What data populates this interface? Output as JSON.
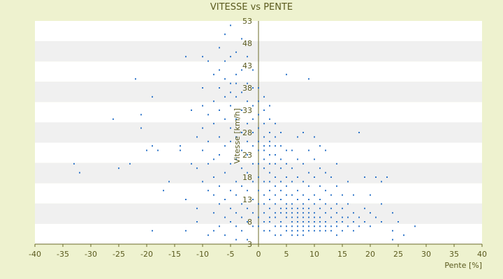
{
  "chart_data": {
    "type": "scatter",
    "title": "VITESSE vs PENTE",
    "xlabel": "Pente [%]",
    "ylabel": "Vitesse [km/h]",
    "xlim": [
      -40,
      40
    ],
    "ylim": [
      3,
      53
    ],
    "x_ticks": [
      "-40",
      "-35",
      "-30",
      "-25",
      "-20",
      "-15",
      "-10",
      "-5",
      "0",
      "5",
      "10",
      "15",
      "20",
      "25",
      "30",
      "35",
      "40"
    ],
    "y_ticks": [
      "3",
      "8",
      "13",
      "18",
      "23",
      "28",
      "33",
      "38",
      "43",
      "48",
      "53"
    ],
    "grid": "horizontal alternating bands",
    "legend": "none",
    "colors": {
      "points": "#2e75c9",
      "background": "#eef2cf",
      "band_light": "#ffffff",
      "band_gray": "#f0f0f0",
      "axis": "#6b6b2a",
      "text": "#5a5a1e"
    },
    "series": [
      {
        "points": [
          [
            -33,
            21
          ],
          [
            -32,
            19
          ],
          [
            -26,
            31
          ],
          [
            -25,
            20
          ],
          [
            -23,
            21
          ],
          [
            -21,
            32
          ],
          [
            -21,
            29
          ],
          [
            -20,
            24
          ],
          [
            -19,
            25
          ],
          [
            -19,
            36
          ],
          [
            -18,
            24
          ],
          [
            -16,
            17
          ],
          [
            -17,
            15
          ],
          [
            -14,
            24
          ],
          [
            -14,
            25
          ],
          [
            -13,
            13
          ],
          [
            -13,
            6
          ],
          [
            -13,
            45
          ],
          [
            -12,
            33
          ],
          [
            -22,
            40
          ],
          [
            -19,
            6
          ],
          [
            -11,
            11
          ],
          [
            -11,
            20
          ],
          [
            -10,
            24
          ],
          [
            -10,
            29
          ],
          [
            -10,
            34
          ],
          [
            -10,
            38
          ],
          [
            -10,
            45
          ],
          [
            -9,
            15
          ],
          [
            -9,
            21
          ],
          [
            -9,
            26
          ],
          [
            -9,
            32
          ],
          [
            -9,
            44
          ],
          [
            -8,
            14
          ],
          [
            -8,
            18
          ],
          [
            -8,
            22
          ],
          [
            -8,
            30
          ],
          [
            -8,
            35
          ],
          [
            -8,
            41
          ],
          [
            -8,
            10
          ],
          [
            -7,
            12
          ],
          [
            -7,
            16
          ],
          [
            -7,
            23
          ],
          [
            -7,
            27
          ],
          [
            -7,
            33
          ],
          [
            -7,
            38
          ],
          [
            -7,
            47
          ],
          [
            -6,
            9
          ],
          [
            -6,
            13
          ],
          [
            -6,
            19
          ],
          [
            -6,
            25
          ],
          [
            -6,
            31
          ],
          [
            -6,
            36
          ],
          [
            -6,
            44
          ],
          [
            -6,
            50
          ],
          [
            -5,
            8
          ],
          [
            -5,
            11
          ],
          [
            -5,
            15
          ],
          [
            -5,
            21
          ],
          [
            -5,
            26
          ],
          [
            -5,
            29
          ],
          [
            -5,
            34
          ],
          [
            -5,
            39
          ],
          [
            -5,
            45
          ],
          [
            -5,
            52
          ],
          [
            -4,
            7
          ],
          [
            -4,
            10
          ],
          [
            -4,
            14
          ],
          [
            -4,
            17
          ],
          [
            -4,
            22
          ],
          [
            -4,
            27
          ],
          [
            -4,
            31
          ],
          [
            -4,
            36
          ],
          [
            -4,
            41
          ],
          [
            -4,
            46
          ],
          [
            -3,
            6
          ],
          [
            -3,
            9
          ],
          [
            -3,
            12
          ],
          [
            -3,
            16
          ],
          [
            -3,
            20
          ],
          [
            -3,
            24
          ],
          [
            -3,
            28
          ],
          [
            -3,
            33
          ],
          [
            -3,
            37
          ],
          [
            -3,
            42
          ],
          [
            -3,
            49
          ],
          [
            -2,
            8
          ],
          [
            -2,
            11
          ],
          [
            -2,
            15
          ],
          [
            -2,
            19
          ],
          [
            -2,
            23
          ],
          [
            -2,
            26
          ],
          [
            -2,
            30
          ],
          [
            -2,
            35
          ],
          [
            -2,
            39
          ],
          [
            -2,
            45
          ],
          [
            -1,
            7
          ],
          [
            -1,
            10
          ],
          [
            -1,
            13
          ],
          [
            -1,
            17
          ],
          [
            -1,
            21
          ],
          [
            -1,
            25
          ],
          [
            -1,
            28
          ],
          [
            -1,
            31
          ],
          [
            -1,
            34
          ],
          [
            -1,
            38
          ],
          [
            -1,
            42
          ],
          [
            -7,
            7
          ],
          [
            -8,
            6
          ],
          [
            -9,
            5
          ],
          [
            -6,
            5
          ],
          [
            -4,
            4
          ],
          [
            -2,
            4
          ],
          [
            -11,
            8
          ],
          [
            -10,
            17
          ],
          [
            -11,
            27
          ],
          [
            -12,
            21
          ],
          [
            -6,
            40
          ],
          [
            -7,
            42
          ],
          [
            -4,
            39
          ],
          [
            -5,
            37
          ],
          [
            0,
            7
          ],
          [
            0,
            9
          ],
          [
            0,
            12
          ],
          [
            0,
            15
          ],
          [
            0,
            18
          ],
          [
            0,
            21
          ],
          [
            0,
            24
          ],
          [
            0,
            26
          ],
          [
            0,
            29
          ],
          [
            0,
            32
          ],
          [
            0,
            35
          ],
          [
            0,
            38
          ],
          [
            1,
            6
          ],
          [
            1,
            8
          ],
          [
            1,
            10
          ],
          [
            1,
            12
          ],
          [
            1,
            14
          ],
          [
            1,
            17
          ],
          [
            1,
            20
          ],
          [
            1,
            22
          ],
          [
            1,
            24
          ],
          [
            1,
            25
          ],
          [
            1,
            27
          ],
          [
            1,
            30
          ],
          [
            1,
            33
          ],
          [
            1,
            36
          ],
          [
            2,
            6
          ],
          [
            2,
            8
          ],
          [
            2,
            9
          ],
          [
            2,
            11
          ],
          [
            2,
            13
          ],
          [
            2,
            15
          ],
          [
            2,
            17
          ],
          [
            2,
            19
          ],
          [
            2,
            21
          ],
          [
            2,
            23
          ],
          [
            2,
            25
          ],
          [
            2,
            26
          ],
          [
            2,
            28
          ],
          [
            2,
            31
          ],
          [
            2,
            34
          ],
          [
            3,
            5
          ],
          [
            3,
            7
          ],
          [
            3,
            9
          ],
          [
            3,
            10
          ],
          [
            3,
            12
          ],
          [
            3,
            14
          ],
          [
            3,
            16
          ],
          [
            3,
            18
          ],
          [
            3,
            21
          ],
          [
            3,
            23
          ],
          [
            3,
            25
          ],
          [
            3,
            27
          ],
          [
            3,
            30
          ],
          [
            4,
            5
          ],
          [
            4,
            7
          ],
          [
            4,
            8
          ],
          [
            4,
            10
          ],
          [
            4,
            11
          ],
          [
            4,
            13
          ],
          [
            4,
            15
          ],
          [
            4,
            17
          ],
          [
            4,
            20
          ],
          [
            4,
            22
          ],
          [
            4,
            25
          ],
          [
            4,
            28
          ],
          [
            5,
            6
          ],
          [
            5,
            7
          ],
          [
            5,
            9
          ],
          [
            5,
            10
          ],
          [
            5,
            11
          ],
          [
            5,
            12
          ],
          [
            5,
            14
          ],
          [
            5,
            16
          ],
          [
            5,
            18
          ],
          [
            5,
            21
          ],
          [
            5,
            24
          ],
          [
            5,
            41
          ],
          [
            6,
            5
          ],
          [
            6,
            6
          ],
          [
            6,
            7
          ],
          [
            6,
            8
          ],
          [
            6,
            9
          ],
          [
            6,
            10
          ],
          [
            6,
            11
          ],
          [
            6,
            12
          ],
          [
            6,
            14
          ],
          [
            6,
            17
          ],
          [
            6,
            20
          ],
          [
            6,
            24
          ],
          [
            7,
            5
          ],
          [
            7,
            6
          ],
          [
            7,
            7
          ],
          [
            7,
            8
          ],
          [
            7,
            9
          ],
          [
            7,
            10
          ],
          [
            7,
            11
          ],
          [
            7,
            13
          ],
          [
            7,
            15
          ],
          [
            7,
            18
          ],
          [
            7,
            22
          ],
          [
            7,
            27
          ],
          [
            8,
            5
          ],
          [
            8,
            6
          ],
          [
            8,
            7
          ],
          [
            8,
            8
          ],
          [
            8,
            9
          ],
          [
            8,
            10
          ],
          [
            8,
            11
          ],
          [
            8,
            12
          ],
          [
            8,
            14
          ],
          [
            8,
            17
          ],
          [
            8,
            21
          ],
          [
            8,
            28
          ],
          [
            9,
            6
          ],
          [
            9,
            7
          ],
          [
            9,
            8
          ],
          [
            9,
            9
          ],
          [
            9,
            10
          ],
          [
            9,
            11
          ],
          [
            9,
            13
          ],
          [
            9,
            16
          ],
          [
            9,
            19
          ],
          [
            9,
            24
          ],
          [
            9,
            40
          ],
          [
            10,
            6
          ],
          [
            10,
            7
          ],
          [
            10,
            8
          ],
          [
            10,
            9
          ],
          [
            10,
            10
          ],
          [
            10,
            12
          ],
          [
            10,
            14
          ],
          [
            10,
            18
          ],
          [
            10,
            22
          ],
          [
            10,
            27
          ],
          [
            11,
            6
          ],
          [
            11,
            7
          ],
          [
            11,
            8
          ],
          [
            11,
            9
          ],
          [
            11,
            11
          ],
          [
            11,
            13
          ],
          [
            11,
            16
          ],
          [
            11,
            20
          ],
          [
            11,
            25
          ],
          [
            12,
            6
          ],
          [
            12,
            7
          ],
          [
            12,
            8
          ],
          [
            12,
            10
          ],
          [
            12,
            12
          ],
          [
            12,
            15
          ],
          [
            12,
            19
          ],
          [
            12,
            24
          ],
          [
            13,
            6
          ],
          [
            13,
            7
          ],
          [
            13,
            9
          ],
          [
            13,
            11
          ],
          [
            13,
            14
          ],
          [
            13,
            18
          ],
          [
            14,
            5
          ],
          [
            14,
            7
          ],
          [
            14,
            8
          ],
          [
            14,
            10
          ],
          [
            14,
            12
          ],
          [
            14,
            16
          ],
          [
            14,
            21
          ],
          [
            15,
            6
          ],
          [
            15,
            8
          ],
          [
            15,
            9
          ],
          [
            15,
            11
          ],
          [
            15,
            14
          ],
          [
            16,
            7
          ],
          [
            16,
            9
          ],
          [
            16,
            12
          ],
          [
            16,
            17
          ],
          [
            17,
            6
          ],
          [
            17,
            8
          ],
          [
            17,
            10
          ],
          [
            17,
            14
          ],
          [
            18,
            7
          ],
          [
            18,
            9
          ],
          [
            18,
            28
          ],
          [
            19,
            8
          ],
          [
            19,
            11
          ],
          [
            19,
            18
          ],
          [
            20,
            7
          ],
          [
            20,
            10
          ],
          [
            20,
            14
          ],
          [
            21,
            9
          ],
          [
            21,
            18
          ],
          [
            22,
            8
          ],
          [
            22,
            12
          ],
          [
            22,
            17
          ],
          [
            23,
            18
          ],
          [
            24,
            6
          ],
          [
            24,
            10
          ],
          [
            24,
            4
          ],
          [
            25,
            8
          ],
          [
            26,
            5
          ],
          [
            28,
            7
          ]
        ]
      }
    ]
  }
}
